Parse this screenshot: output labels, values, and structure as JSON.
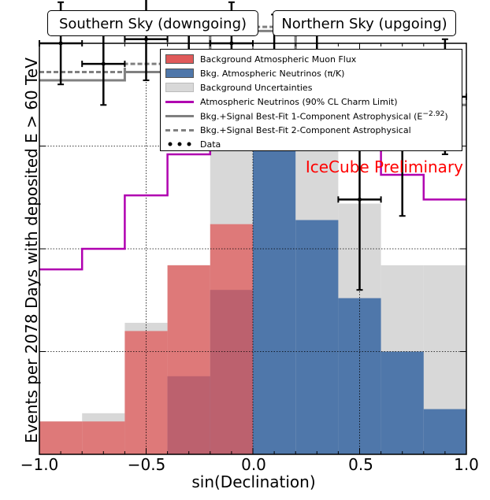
{
  "chart_data": {
    "type": "histogram",
    "regions": {
      "left": "Southern Sky (downgoing)",
      "right": "Northern Sky (upgoing)"
    },
    "xlabel": "sin(Declination)",
    "ylabel": "Events per 2078 Days with deposited E > 60 TeV",
    "xlim": [
      -1.0,
      1.0
    ],
    "ylim": [
      0,
      10
    ],
    "x_ticks": [
      "−1.0",
      "−0.5",
      "0.0",
      "0.5",
      "1.0"
    ],
    "grid": true,
    "bin_edges": [
      -1.0,
      -0.8,
      -0.6,
      -0.4,
      -0.2,
      0.0,
      0.2,
      0.4,
      0.6,
      0.8,
      1.0
    ],
    "series": [
      {
        "name": "Background Atmospheric Muon Flux",
        "color": "#e05a5a",
        "values": [
          0.8,
          0.8,
          3.0,
          4.6,
          5.6,
          0.0,
          0.0,
          0.0,
          0.0,
          0.0
        ]
      },
      {
        "name": "Bkg. Atmospheric Neutrinos (π/K)",
        "color": "#4f77aa",
        "values": [
          0.0,
          0.0,
          0.0,
          1.9,
          4.0,
          7.4,
          5.7,
          3.8,
          2.5,
          1.1
        ]
      },
      {
        "name": "Background Uncertainties",
        "color": "#d8d8d8",
        "values": [
          0.8,
          1.0,
          3.2,
          4.6,
          8.5,
          8.5,
          8.1,
          6.1,
          4.6,
          4.6
        ]
      },
      {
        "name": "Atmospheric Neutrinos (90% CL Charm Limit)",
        "color": "#b000b0",
        "values": [
          4.5,
          5.0,
          6.3,
          7.3,
          8.6,
          9.4,
          8.6,
          7.5,
          6.8,
          6.2
        ]
      },
      {
        "name": "Bkg.+Signal Best-Fit 1-Component Astrophysical (E^-2.92)",
        "color": "#808080",
        "values": [
          9.1,
          9.1,
          9.3,
          9.8,
          10.2,
          10.3,
          9.5,
          8.5,
          8.5,
          8.5
        ]
      },
      {
        "name": "Bkg.+Signal Best-Fit 2-Component Astrophysical",
        "color": "#808080",
        "values": [
          9.3,
          9.3,
          9.5,
          9.7,
          10.5,
          10.4,
          9.6,
          9.1,
          8.6,
          8.5
        ]
      }
    ],
    "data_points": {
      "name": "Data",
      "x": [
        -0.9,
        -0.7,
        -0.5,
        -0.3,
        -0.1,
        0.1,
        0.3,
        0.5,
        0.7,
        0.9
      ],
      "y": [
        10.0,
        9.5,
        10.1,
        9.3,
        10.0,
        9.7,
        9.0,
        6.2,
        7.7,
        8.7
      ],
      "y_err": [
        1.0,
        1.0,
        1.0,
        1.0,
        1.0,
        1.0,
        1.2,
        2.2,
        1.9,
        1.4
      ]
    },
    "legend_entries": [
      "Background Atmospheric Muon Flux",
      "Bkg. Atmospheric Neutrinos (π/K)",
      "Background Uncertainties",
      "Atmospheric Neutrinos (90% CL Charm Limit)",
      "Bkg.+Signal Best-Fit 1-Component Astrophysical (E",
      "Bkg.+Signal Best-Fit 2-Component Astrophysical",
      "Data"
    ],
    "legend_exponent": "−2.92",
    "legend_placement": "top-right",
    "annotation": "IceCube Preliminary"
  }
}
